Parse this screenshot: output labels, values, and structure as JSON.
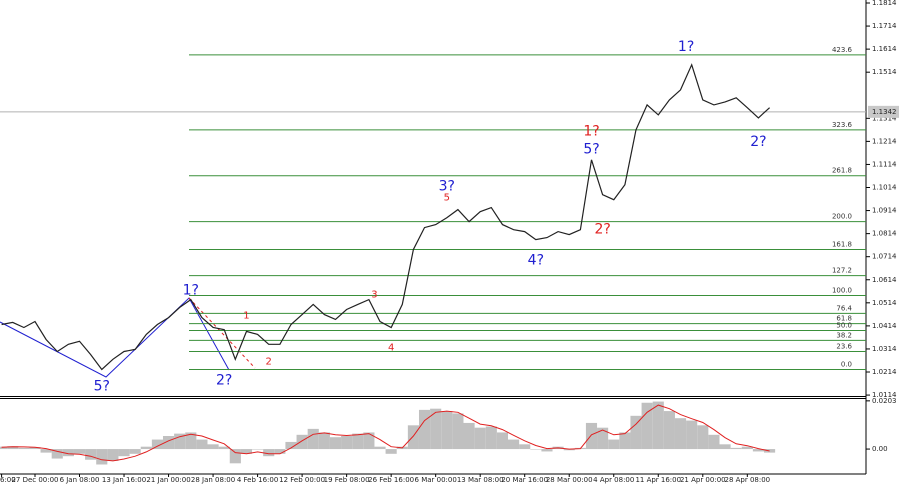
{
  "chart_data": [
    {
      "type": "line",
      "categories": [
        "6:00",
        null,
        null,
        "27 Dec 00:00",
        null,
        null,
        null,
        "6 Jan 08:00",
        null,
        null,
        null,
        "13 Jan 16:00",
        null,
        null,
        null,
        "21 Jan 00:00",
        null,
        null,
        null,
        "28 Jan 08:00",
        null,
        null,
        null,
        "4 Feb 16:00",
        null,
        null,
        null,
        "12 Feb 00:00",
        null,
        null,
        null,
        "19 Feb 08:00",
        null,
        null,
        null,
        "26 Feb 16:00",
        null,
        null,
        null,
        "6 Mar 00:00",
        null,
        null,
        null,
        "13 Mar 08:00",
        null,
        null,
        null,
        "20 Mar 16:00",
        null,
        null,
        null,
        "28 Mar 00:00",
        null,
        null,
        null,
        "4 Apr 08:00",
        null,
        null,
        null,
        "11 Apr 16:00",
        null,
        null,
        null,
        "21 Apr 00:00",
        null,
        null,
        null,
        "28 Apr 08:00",
        null,
        null
      ],
      "values": [
        1.042,
        1.0429,
        1.0407,
        1.0433,
        1.0355,
        1.0303,
        1.0334,
        1.0347,
        1.029,
        1.0225,
        1.0269,
        1.0303,
        1.0312,
        1.0377,
        1.042,
        1.045,
        1.0494,
        1.0528,
        1.045,
        1.0407,
        1.0398,
        1.0269,
        1.039,
        1.0377,
        1.0334,
        1.0334,
        1.042,
        1.0463,
        1.0507,
        1.0463,
        1.0442,
        1.0485,
        1.0507,
        1.0528,
        1.0433,
        1.0407,
        1.0507,
        1.0745,
        1.084,
        1.0853,
        1.0883,
        1.0918,
        1.0866,
        1.0909,
        1.0927,
        1.0853,
        1.0831,
        1.0823,
        1.0788,
        1.0797,
        1.0823,
        1.081,
        1.0831,
        1.1134,
        1.0983,
        1.0961,
        1.1026,
        1.1264,
        1.1372,
        1.1329,
        1.1394,
        1.1437,
        1.1546,
        1.1394,
        1.1372,
        1.1385,
        1.1403,
        1.136,
        1.1316,
        1.136
      ],
      "color": "#222222",
      "ylim": [
        1.011,
        1.1827
      ],
      "yticks": [
        1.1814,
        1.1714,
        1.1614,
        1.1514,
        1.1314,
        1.1214,
        1.1114,
        1.1014,
        1.0914,
        1.0814,
        1.0714,
        1.0614,
        1.0514,
        1.0414,
        1.0314,
        1.0214,
        1.0114
      ],
      "last_price": 1.1342,
      "levels": [
        {
          "value": 1.1589,
          "label": "423.6"
        },
        {
          "value": 1.1264,
          "label": "323.6"
        },
        {
          "value": 1.1065,
          "label": "261.8"
        },
        {
          "value": 1.0866,
          "label": "200.0"
        },
        {
          "value": 1.0745,
          "label": "161.8"
        },
        {
          "value": 1.0632,
          "label": "127.2"
        },
        {
          "value": 1.0546,
          "label": "100.0"
        },
        {
          "value": 1.0468,
          "label": "76.4"
        },
        {
          "value": 1.0424,
          "label": "61.8"
        },
        {
          "value": 1.0394,
          "label": "50.0"
        },
        {
          "value": 1.0351,
          "label": "38.2"
        },
        {
          "value": 1.0303,
          "label": "23.6"
        },
        {
          "value": 1.0225,
          "label": "0.0"
        }
      ],
      "level_color": "#3a8f3a",
      "annotations": [
        {
          "text": "1?",
          "at": 17,
          "y": 1.0567,
          "color": "#2020d0"
        },
        {
          "text": "2?",
          "at": 20,
          "y": 1.0178,
          "color": "#2020d0"
        },
        {
          "text": "5?",
          "at": 9,
          "y": 1.0152,
          "color": "#2020d0"
        },
        {
          "text": "3?",
          "at": 40,
          "y": 1.1018,
          "color": "#2020d0"
        },
        {
          "text": "4?",
          "at": 48,
          "y": 1.0697,
          "color": "#2020d0"
        },
        {
          "text": "5?",
          "at": 53,
          "y": 1.1178,
          "color": "#2020d0"
        },
        {
          "text": "1?",
          "at": 61.5,
          "y": 1.1624,
          "color": "#2020d0"
        },
        {
          "text": "2?",
          "at": 68,
          "y": 1.1212,
          "color": "#2020d0"
        },
        {
          "text": "1?",
          "at": 53,
          "y": 1.1256,
          "color": "#e02020"
        },
        {
          "text": "2?",
          "at": 54,
          "y": 1.0831,
          "color": "#e02020"
        },
        {
          "text": "5",
          "at": 40,
          "y": 1.097,
          "color": "#e02020"
        },
        {
          "text": "3",
          "at": 33.5,
          "y": 1.055,
          "color": "#e02020"
        },
        {
          "text": "4",
          "at": 35,
          "y": 1.032,
          "color": "#e02020"
        },
        {
          "text": "1",
          "at": 22,
          "y": 1.0459,
          "color": "#e02020"
        },
        {
          "text": "2",
          "at": 24,
          "y": 1.026,
          "color": "#e02020"
        }
      ]
    },
    {
      "type": "bar",
      "ylim": [
        -0.0105,
        0.0215
      ],
      "yticks": [
        0.0203,
        {
          "value": 0,
          "label": "0.00"
        }
      ],
      "series": [
        {
          "color": "#c0c0c0",
          "values": [
            0.001,
            0.0012,
            0.0005,
            0.0008,
            -0.0015,
            -0.004,
            -0.003,
            -0.002,
            -0.0045,
            -0.0065,
            -0.005,
            -0.003,
            -0.002,
            0.001,
            0.004,
            0.0055,
            0.0065,
            0.007,
            0.004,
            0.002,
            0.001,
            -0.006,
            -0.002,
            0.0,
            -0.003,
            -0.002,
            0.003,
            0.006,
            0.0085,
            0.007,
            0.005,
            0.0055,
            0.0065,
            0.007,
            0.001,
            -0.002,
            0.001,
            0.01,
            0.0165,
            0.017,
            0.016,
            0.015,
            0.011,
            0.009,
            0.0095,
            0.007,
            0.004,
            0.002,
            0.0,
            -0.001,
            0.001,
            -0.0005,
            0.0005,
            0.011,
            0.009,
            0.004,
            0.007,
            0.014,
            0.0195,
            0.02,
            0.016,
            0.013,
            0.012,
            0.01,
            0.006,
            0.002,
            0.0005,
            0.001,
            -0.001,
            -0.0015
          ]
        },
        {
          "type": "line",
          "color": "#e02020",
          "values": [
            0.0008,
            0.001,
            0.0009,
            0.0008,
            0.0002,
            -0.001,
            -0.002,
            -0.0022,
            -0.003,
            -0.0045,
            -0.005,
            -0.0042,
            -0.003,
            -0.0012,
            0.0012,
            0.0035,
            0.0052,
            0.0062,
            0.0055,
            0.0038,
            0.0022,
            -0.0015,
            -0.002,
            -0.0012,
            -0.002,
            -0.002,
            0.0005,
            0.0035,
            0.0062,
            0.0068,
            0.006,
            0.0057,
            0.006,
            0.0065,
            0.004,
            0.001,
            0.0005,
            0.0055,
            0.012,
            0.0155,
            0.016,
            0.0155,
            0.013,
            0.0105,
            0.0098,
            0.0082,
            0.0058,
            0.0035,
            0.0015,
            0.0002,
            0.0005,
            0.0,
            0.0002,
            0.006,
            0.008,
            0.006,
            0.0065,
            0.0105,
            0.0155,
            0.0185,
            0.017,
            0.0145,
            0.0128,
            0.0112,
            0.0082,
            0.0048,
            0.0022,
            0.0014,
            0.0002,
            -0.0008
          ]
        }
      ]
    }
  ]
}
